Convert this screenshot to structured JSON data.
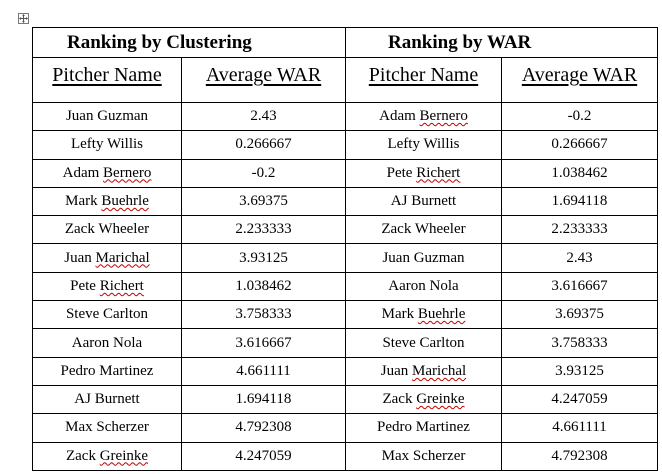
{
  "table": {
    "group_headers": [
      "Ranking by   Clustering",
      "Ranking by   WAR"
    ],
    "column_headers": [
      "Pitcher Name",
      "Average WAR",
      "Pitcher Name",
      "Average WAR"
    ],
    "rows": [
      {
        "c_name": "Juan Guzman",
        "c_war": "2.43",
        "w_name": "Adam Bernero",
        "w_war": "-0.2"
      },
      {
        "c_name": "Lefty Willis",
        "c_war": "0.266667",
        "w_name": "Lefty Willis",
        "w_war": "0.266667"
      },
      {
        "c_name": "Adam Bernero",
        "c_war": "-0.2",
        "w_name": "Pete Richert",
        "w_war": "1.038462"
      },
      {
        "c_name": "Mark Buehrle",
        "c_war": "3.69375",
        "w_name": "AJ Burnett",
        "w_war": "1.694118"
      },
      {
        "c_name": "Zack Wheeler",
        "c_war": "2.233333",
        "w_name": "Zack Wheeler",
        "w_war": "2.233333"
      },
      {
        "c_name": "Juan Marichal",
        "c_war": "3.93125",
        "w_name": "Juan Guzman",
        "w_war": "2.43"
      },
      {
        "c_name": "Pete Richert",
        "c_war": "1.038462",
        "w_name": "Aaron Nola",
        "w_war": "3.616667"
      },
      {
        "c_name": "Steve Carlton",
        "c_war": "3.758333",
        "w_name": "Mark Buehrle",
        "w_war": "3.69375"
      },
      {
        "c_name": "Aaron Nola",
        "c_war": "3.616667",
        "w_name": "Steve Carlton",
        "w_war": "3.758333"
      },
      {
        "c_name": "Pedro Martinez",
        "c_war": "4.661111",
        "w_name": "Juan Marichal",
        "w_war": "3.93125"
      },
      {
        "c_name": "AJ Burnett",
        "c_war": "1.694118",
        "w_name": "Zack Greinke",
        "w_war": "4.247059"
      },
      {
        "c_name": "Max Scherzer",
        "c_war": "4.792308",
        "w_name": "Pedro Martinez",
        "w_war": "4.661111"
      },
      {
        "c_name": "Zack Greinke",
        "c_war": "4.247059",
        "w_name": "Max Scherzer",
        "w_war": "4.792308"
      }
    ]
  },
  "spellcheck_flagged": [
    "Bernero",
    "Buehrle",
    "Marichal",
    "Richert",
    "Greinke"
  ],
  "colors": {
    "spellcheck_underline": "#c00000",
    "border": "#000000"
  }
}
